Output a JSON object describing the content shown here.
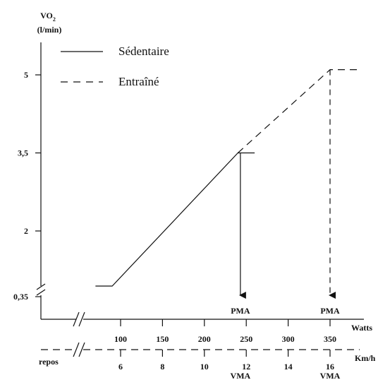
{
  "chart_data": {
    "type": "line",
    "title": "",
    "ylabel_main": "VO",
    "ylabel_sub": "2",
    "ylabel_unit": "(l/min)",
    "y_ticks": [
      {
        "value": 0.35,
        "label": "0,35"
      },
      {
        "value": 2,
        "label": "2"
      },
      {
        "value": 3.5,
        "label": "3,5"
      },
      {
        "value": 5,
        "label": "5"
      }
    ],
    "ylim": [
      0.35,
      5
    ],
    "x_axis_watts": {
      "label": "Watts",
      "ticks": [
        {
          "value": 100,
          "label": "100"
        },
        {
          "value": 150,
          "label": "150"
        },
        {
          "value": 200,
          "label": "200"
        },
        {
          "value": 250,
          "label": "250"
        },
        {
          "value": 300,
          "label": "300"
        },
        {
          "value": 350,
          "label": "350"
        }
      ]
    },
    "x_axis_kmh": {
      "label": "Km/h",
      "rest_label": "repos",
      "ticks": [
        {
          "value": 6,
          "label": "6"
        },
        {
          "value": 8,
          "label": "8"
        },
        {
          "value": 10,
          "label": "10"
        },
        {
          "value": 12,
          "label": "12"
        },
        {
          "value": 14,
          "label": "14"
        },
        {
          "value": 16,
          "label": "16"
        }
      ]
    },
    "series": [
      {
        "name": "Sédentaire",
        "style": "solid",
        "points": [
          [
            70,
            0.35
          ],
          [
            90,
            0.35
          ],
          [
            240,
            3.5
          ],
          [
            260,
            3.5
          ]
        ]
      },
      {
        "name": "Entraîné",
        "style": "dashed",
        "points": [
          [
            240,
            3.5
          ],
          [
            350,
            5.1
          ],
          [
            385,
            5.1
          ]
        ]
      }
    ],
    "annotations": [
      {
        "text": "PMA",
        "x_watts": 243,
        "kmh_label": "VMA",
        "series": "Sédentaire",
        "from_y": 3.5
      },
      {
        "text": "PMA",
        "x_watts": 350,
        "kmh_label": "VMA",
        "series": "Entraîné",
        "from_y": 5.1
      }
    ],
    "grid": false,
    "legend_position": "top-left"
  }
}
